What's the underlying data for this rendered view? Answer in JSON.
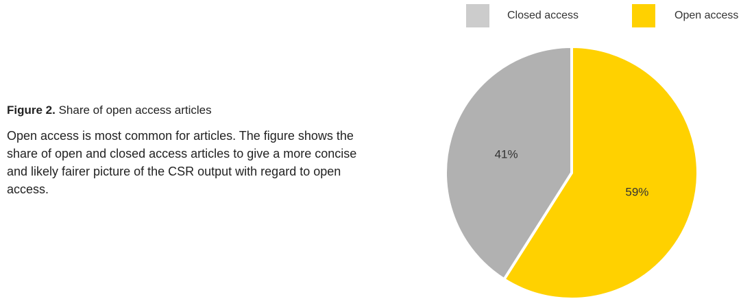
{
  "figure": {
    "label": "Figure 2.",
    "title": "Share of open access articles",
    "description": "Open access is most common for articles. The figure shows the share of open and closed access articles to give a more concise and likely fairer picture of the CSR output with regard to open access."
  },
  "legend": {
    "placement": "top-right",
    "items": [
      {
        "label": "Closed access",
        "color": "#cccccc"
      },
      {
        "label": "Open access",
        "color": "#ffd100"
      }
    ]
  },
  "chart_data": {
    "type": "pie",
    "title": "Share of open access articles",
    "categories": [
      "Closed access",
      "Open access"
    ],
    "values": [
      41,
      59
    ],
    "data_labels": [
      "41%",
      "59%"
    ],
    "colors": [
      "#b1b1b1",
      "#ffd100"
    ],
    "start": "12 o'clock",
    "direction": "open access clockwise"
  }
}
